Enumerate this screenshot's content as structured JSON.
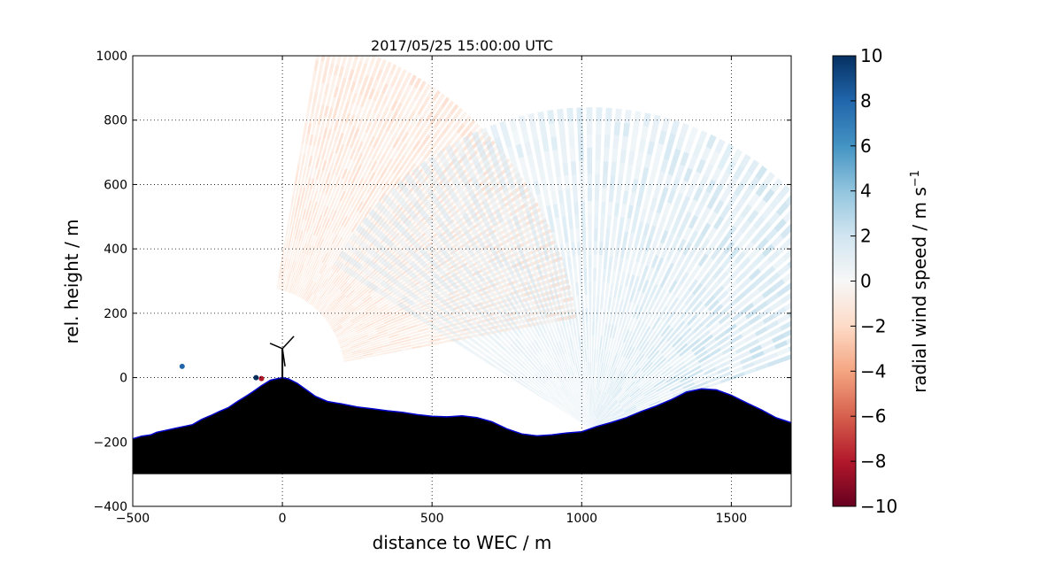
{
  "chart_data": {
    "type": "heatmap",
    "title": "2017/05/25 15:00:00 UTC",
    "xlabel": "distance to WEC / m",
    "ylabel": "rel. height / m",
    "xlim": [
      -500,
      1700
    ],
    "ylim": [
      -400,
      1000
    ],
    "xticks": [
      -500,
      0,
      500,
      1000,
      1500
    ],
    "yticks": [
      -400,
      -200,
      0,
      200,
      400,
      600,
      800,
      1000
    ],
    "grid": true,
    "colorbar": {
      "label": "radial wind speed / m s",
      "label_superscript": "−1",
      "range": [
        -10,
        10
      ],
      "ticks": [
        "10",
        "8",
        "6",
        "4",
        "2",
        "0",
        "−2",
        "−4",
        "−6",
        "−8",
        "−10"
      ],
      "colormap": "RdBu",
      "colors": [
        "#67001f",
        "#b2182b",
        "#d6604d",
        "#f4a582",
        "#fddbc7",
        "#f7f7f7",
        "#d1e5f0",
        "#92c5de",
        "#4393c3",
        "#2166ac",
        "#053061"
      ]
    },
    "scan_sectors": [
      {
        "origin_x": -70,
        "origin_y": 0,
        "range_min": 280,
        "range_max": 1070,
        "angle_start_deg": 10,
        "angle_end_deg": 80,
        "mean_radial_speed": -2
      },
      {
        "origin_x": 1030,
        "origin_y": -160,
        "range_min": 0,
        "range_max": 1000,
        "angle_start_deg": 18,
        "angle_end_deg": 150,
        "mean_radial_speed": 2
      }
    ],
    "terrain_profile": {
      "x": [
        -500,
        -470,
        -440,
        -420,
        -390,
        -360,
        -330,
        -300,
        -270,
        -240,
        -210,
        -180,
        -150,
        -120,
        -100,
        -70,
        -40,
        -20,
        0,
        20,
        50,
        80,
        110,
        150,
        200,
        250,
        300,
        350,
        400,
        450,
        500,
        550,
        600,
        650,
        700,
        750,
        800,
        850,
        900,
        950,
        1000,
        1050,
        1100,
        1150,
        1200,
        1250,
        1300,
        1350,
        1400,
        1450,
        1500,
        1550,
        1600,
        1650,
        1700
      ],
      "y": [
        -190,
        -182,
        -178,
        -170,
        -164,
        -158,
        -152,
        -146,
        -130,
        -118,
        -105,
        -93,
        -74,
        -57,
        -45,
        -25,
        -8,
        -4,
        0,
        -4,
        -18,
        -38,
        -58,
        -74,
        -82,
        -91,
        -97,
        -103,
        -108,
        -115,
        -120,
        -122,
        -119,
        -124,
        -137,
        -159,
        -175,
        -181,
        -178,
        -172,
        -168,
        -152,
        -139,
        -124,
        -105,
        -88,
        -68,
        -45,
        -35,
        -38,
        -55,
        -78,
        -100,
        -125,
        -140
      ],
      "base": -300
    },
    "markers": [
      {
        "x": -335,
        "y": 35,
        "color": "#2166ac"
      },
      {
        "x": -88,
        "y": 0,
        "color": "#053061"
      },
      {
        "x": -70,
        "y": -3,
        "color": "#b2182b"
      }
    ],
    "turbine": {
      "x": 0,
      "hub_height": 90
    }
  }
}
